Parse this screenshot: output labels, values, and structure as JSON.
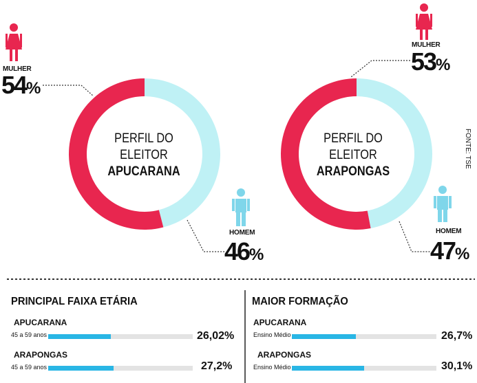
{
  "colors": {
    "mulher": "#e8264f",
    "homem": "#bff1f5",
    "homem_icon": "#7fd6ea",
    "bar_fill": "#29b6e5",
    "bar_track": "#e3e3e3"
  },
  "chart_data": [
    {
      "type": "pie",
      "subtype": "donut",
      "title_line1": "PERFIL DO",
      "title_line2": "ELEITOR",
      "title_city": "APUCARANA",
      "series": [
        {
          "name": "MULHER",
          "value": 54,
          "label": "54",
          "color": "#e8264f"
        },
        {
          "name": "HOMEM",
          "value": 46,
          "label": "46",
          "color": "#bff1f5"
        }
      ]
    },
    {
      "type": "pie",
      "subtype": "donut",
      "title_line1": "PERFIL DO",
      "title_line2": "ELEITOR",
      "title_city": "ARAPONGAS",
      "series": [
        {
          "name": "MULHER",
          "value": 53,
          "label": "53",
          "color": "#e8264f"
        },
        {
          "name": "HOMEM",
          "value": 47,
          "label": "47",
          "color": "#bff1f5"
        }
      ]
    }
  ],
  "percent_symbol": "%",
  "source": "FONTE: TSE",
  "faixa": {
    "title": "PRINCIPAL FAIXA ETÁRIA",
    "rows": [
      {
        "city": "APUCARANA",
        "label": "45 a 59 anos",
        "value": 26.02,
        "display": "26,02%"
      },
      {
        "city": "ARAPONGAS",
        "label": "45 a 59 anos",
        "value": 27.2,
        "display": "27,2%"
      }
    ]
  },
  "formacao": {
    "title": "MAIOR FORMAÇÃO",
    "rows": [
      {
        "city": "APUCARANA",
        "label": "Ensino Médio",
        "value": 26.7,
        "display": "26,7%"
      },
      {
        "city": "ARAPONGAS",
        "label": "Ensino Médio",
        "value": 30.1,
        "display": "30,1%"
      }
    ]
  }
}
